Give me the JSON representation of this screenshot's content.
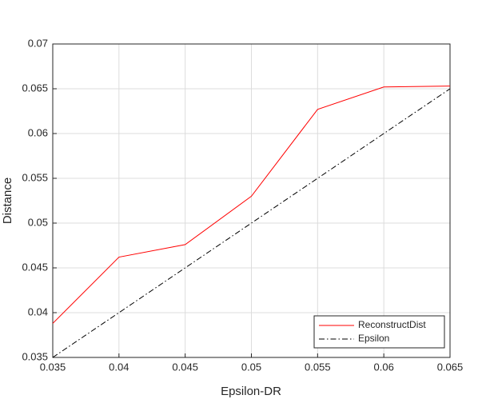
{
  "chart_data": {
    "type": "line",
    "xlabel": "Epsilon-DR",
    "ylabel": "Distance",
    "x": [
      0.035,
      0.04,
      0.045,
      0.05,
      0.055,
      0.06,
      0.065
    ],
    "series": [
      {
        "name": "ReconstructDist",
        "color": "#ff0000",
        "linestyle": "solid",
        "values": [
          0.0388,
          0.0462,
          0.0476,
          0.053,
          0.0627,
          0.0652,
          0.0653
        ]
      },
      {
        "name": "Epsilon",
        "color": "#000000",
        "linestyle": "dashdot",
        "values": [
          0.035,
          0.04,
          0.045,
          0.05,
          0.055,
          0.06,
          0.065
        ]
      }
    ],
    "xlim": [
      0.035,
      0.065
    ],
    "xticks": [
      0.035,
      0.04,
      0.045,
      0.05,
      0.055,
      0.06,
      0.065
    ],
    "ylim": [
      0.035,
      0.07
    ],
    "yticks": [
      0.035,
      0.04,
      0.045,
      0.05,
      0.055,
      0.06,
      0.065,
      0.07
    ],
    "grid": true,
    "legend": "southeast"
  }
}
